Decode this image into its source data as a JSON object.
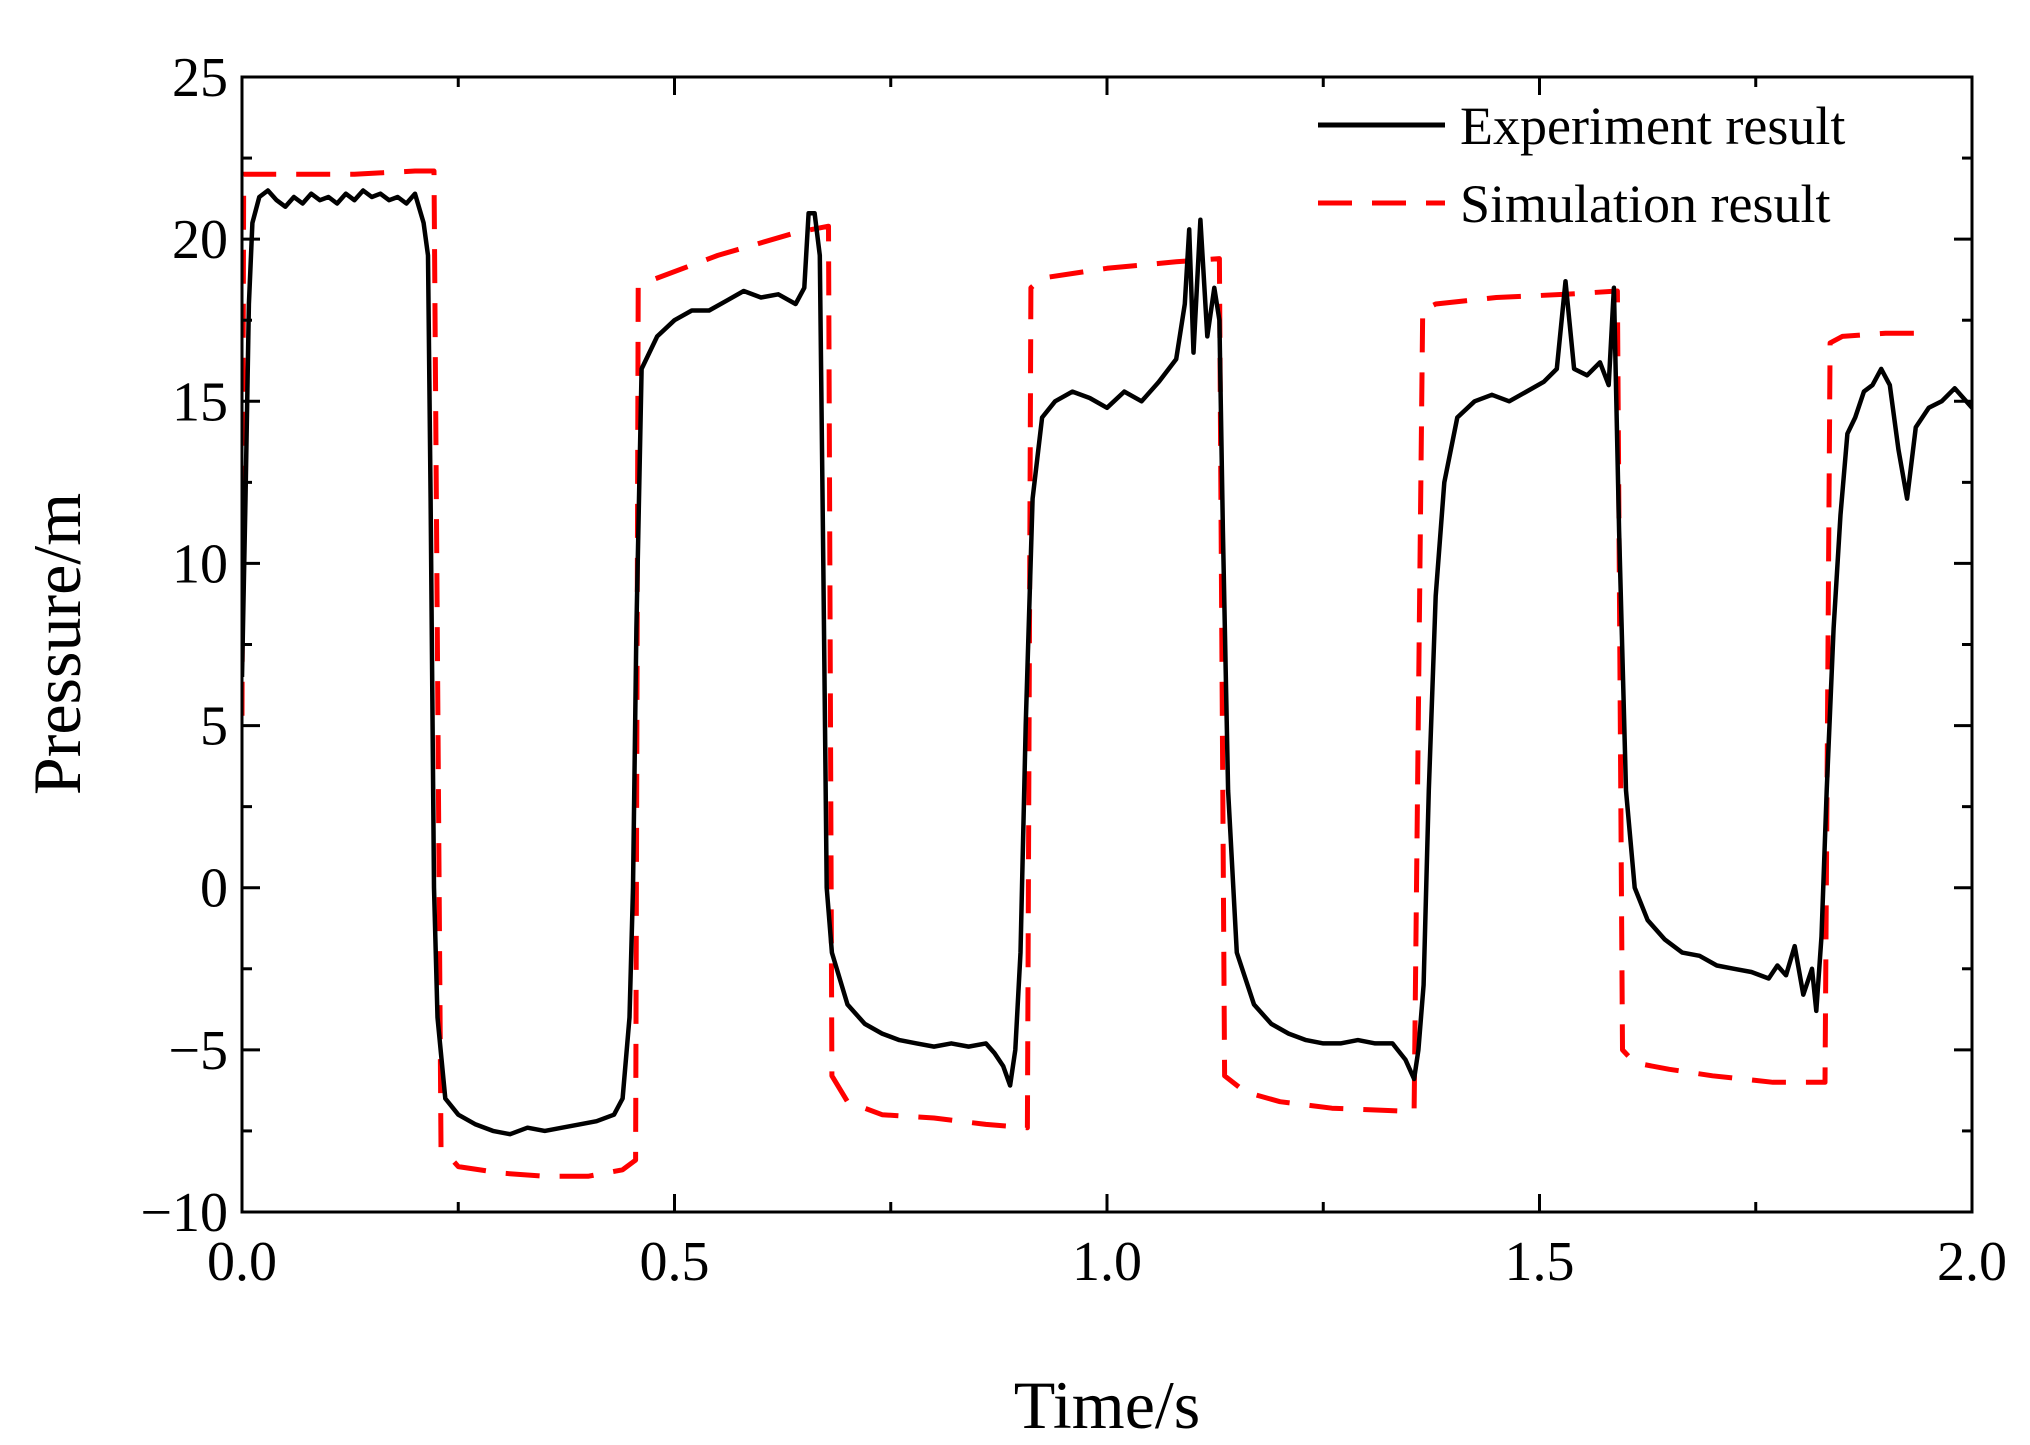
{
  "chart_data": {
    "type": "line",
    "title": "",
    "xlabel": "Time/s",
    "ylabel": "Pressure/m",
    "xlim": [
      0,
      2.0
    ],
    "ylim": [
      -10,
      25
    ],
    "x_ticks": [
      0.0,
      0.5,
      1.0,
      1.5,
      2.0
    ],
    "x_tick_labels": [
      "0.0",
      "0.5",
      "1.0",
      "1.5",
      "2.0"
    ],
    "y_ticks": [
      -10,
      -5,
      0,
      5,
      10,
      15,
      20,
      25
    ],
    "y_tick_labels": [
      "−10",
      "−5",
      "0",
      "5",
      "10",
      "15",
      "20",
      "25"
    ],
    "grid": false,
    "legend_position": "top-right",
    "series": [
      {
        "name": "Experiment result",
        "color": "#000000",
        "style": "solid",
        "points": [
          [
            0.0,
            6.5
          ],
          [
            0.004,
            12
          ],
          [
            0.008,
            18
          ],
          [
            0.012,
            20.5
          ],
          [
            0.02,
            21.3
          ],
          [
            0.03,
            21.5
          ],
          [
            0.04,
            21.2
          ],
          [
            0.05,
            21.0
          ],
          [
            0.06,
            21.3
          ],
          [
            0.07,
            21.1
          ],
          [
            0.08,
            21.4
          ],
          [
            0.09,
            21.2
          ],
          [
            0.1,
            21.3
          ],
          [
            0.11,
            21.1
          ],
          [
            0.12,
            21.4
          ],
          [
            0.13,
            21.2
          ],
          [
            0.14,
            21.5
          ],
          [
            0.15,
            21.3
          ],
          [
            0.16,
            21.4
          ],
          [
            0.17,
            21.2
          ],
          [
            0.18,
            21.3
          ],
          [
            0.19,
            21.1
          ],
          [
            0.2,
            21.4
          ],
          [
            0.21,
            20.5
          ],
          [
            0.215,
            19.5
          ],
          [
            0.218,
            12
          ],
          [
            0.222,
            0
          ],
          [
            0.226,
            -4
          ],
          [
            0.235,
            -6.5
          ],
          [
            0.25,
            -7.0
          ],
          [
            0.27,
            -7.3
          ],
          [
            0.29,
            -7.5
          ],
          [
            0.31,
            -7.6
          ],
          [
            0.33,
            -7.4
          ],
          [
            0.35,
            -7.5
          ],
          [
            0.37,
            -7.4
          ],
          [
            0.39,
            -7.3
          ],
          [
            0.41,
            -7.2
          ],
          [
            0.43,
            -7.0
          ],
          [
            0.44,
            -6.5
          ],
          [
            0.448,
            -4
          ],
          [
            0.452,
            0
          ],
          [
            0.456,
            8
          ],
          [
            0.462,
            16
          ],
          [
            0.48,
            17.0
          ],
          [
            0.5,
            17.5
          ],
          [
            0.52,
            17.8
          ],
          [
            0.54,
            17.8
          ],
          [
            0.56,
            18.1
          ],
          [
            0.58,
            18.4
          ],
          [
            0.6,
            18.2
          ],
          [
            0.62,
            18.3
          ],
          [
            0.64,
            18.0
          ],
          [
            0.65,
            18.5
          ],
          [
            0.655,
            20.8
          ],
          [
            0.662,
            20.8
          ],
          [
            0.668,
            19.5
          ],
          [
            0.672,
            10
          ],
          [
            0.676,
            0
          ],
          [
            0.682,
            -2
          ],
          [
            0.7,
            -3.6
          ],
          [
            0.72,
            -4.2
          ],
          [
            0.74,
            -4.5
          ],
          [
            0.76,
            -4.7
          ],
          [
            0.78,
            -4.8
          ],
          [
            0.8,
            -4.9
          ],
          [
            0.82,
            -4.8
          ],
          [
            0.84,
            -4.9
          ],
          [
            0.86,
            -4.8
          ],
          [
            0.87,
            -5.1
          ],
          [
            0.88,
            -5.5
          ],
          [
            0.888,
            -6.1
          ],
          [
            0.894,
            -5.0
          ],
          [
            0.9,
            -2
          ],
          [
            0.906,
            5
          ],
          [
            0.914,
            12
          ],
          [
            0.925,
            14.5
          ],
          [
            0.94,
            15.0
          ],
          [
            0.96,
            15.3
          ],
          [
            0.98,
            15.1
          ],
          [
            1.0,
            14.8
          ],
          [
            1.02,
            15.3
          ],
          [
            1.04,
            15.0
          ],
          [
            1.06,
            15.6
          ],
          [
            1.08,
            16.3
          ],
          [
            1.09,
            18.0
          ],
          [
            1.095,
            20.3
          ],
          [
            1.1,
            16.5
          ],
          [
            1.108,
            20.6
          ],
          [
            1.116,
            17.0
          ],
          [
            1.124,
            18.5
          ],
          [
            1.13,
            17.5
          ],
          [
            1.134,
            11
          ],
          [
            1.14,
            3
          ],
          [
            1.15,
            -2.0
          ],
          [
            1.17,
            -3.6
          ],
          [
            1.19,
            -4.2
          ],
          [
            1.21,
            -4.5
          ],
          [
            1.23,
            -4.7
          ],
          [
            1.25,
            -4.8
          ],
          [
            1.27,
            -4.8
          ],
          [
            1.29,
            -4.7
          ],
          [
            1.31,
            -4.8
          ],
          [
            1.33,
            -4.8
          ],
          [
            1.345,
            -5.3
          ],
          [
            1.355,
            -5.9
          ],
          [
            1.36,
            -5.0
          ],
          [
            1.366,
            -3
          ],
          [
            1.372,
            3
          ],
          [
            1.38,
            9
          ],
          [
            1.39,
            12.5
          ],
          [
            1.405,
            14.5
          ],
          [
            1.425,
            15.0
          ],
          [
            1.445,
            15.2
          ],
          [
            1.465,
            15.0
          ],
          [
            1.485,
            15.3
          ],
          [
            1.505,
            15.6
          ],
          [
            1.52,
            16.0
          ],
          [
            1.53,
            18.7
          ],
          [
            1.54,
            16.0
          ],
          [
            1.555,
            15.8
          ],
          [
            1.57,
            16.2
          ],
          [
            1.58,
            15.5
          ],
          [
            1.586,
            18.5
          ],
          [
            1.592,
            11
          ],
          [
            1.6,
            3
          ],
          [
            1.61,
            0
          ],
          [
            1.625,
            -1.0
          ],
          [
            1.645,
            -1.6
          ],
          [
            1.665,
            -2.0
          ],
          [
            1.685,
            -2.1
          ],
          [
            1.705,
            -2.4
          ],
          [
            1.725,
            -2.5
          ],
          [
            1.745,
            -2.6
          ],
          [
            1.765,
            -2.8
          ],
          [
            1.775,
            -2.4
          ],
          [
            1.785,
            -2.7
          ],
          [
            1.795,
            -1.8
          ],
          [
            1.805,
            -3.3
          ],
          [
            1.815,
            -2.5
          ],
          [
            1.82,
            -3.8
          ],
          [
            1.826,
            -1.5
          ],
          [
            1.832,
            3
          ],
          [
            1.84,
            8
          ],
          [
            1.848,
            11.5
          ],
          [
            1.856,
            14.0
          ],
          [
            1.865,
            14.5
          ],
          [
            1.875,
            15.3
          ],
          [
            1.885,
            15.5
          ],
          [
            1.895,
            16.0
          ],
          [
            1.905,
            15.5
          ],
          [
            1.915,
            13.5
          ],
          [
            1.925,
            12.0
          ],
          [
            1.935,
            14.2
          ],
          [
            1.95,
            14.8
          ],
          [
            1.965,
            15.0
          ],
          [
            1.98,
            15.4
          ],
          [
            2.0,
            14.8
          ]
        ]
      },
      {
        "name": "Simulation result",
        "color": "#ff0000",
        "style": "dashed",
        "points": [
          [
            0.0,
            5.3
          ],
          [
            0.002,
            22.0
          ],
          [
            0.01,
            22.0
          ],
          [
            0.06,
            22.0
          ],
          [
            0.13,
            22.0
          ],
          [
            0.2,
            22.1
          ],
          [
            0.222,
            22.1
          ],
          [
            0.23,
            -8.0
          ],
          [
            0.25,
            -8.6
          ],
          [
            0.3,
            -8.8
          ],
          [
            0.35,
            -8.9
          ],
          [
            0.4,
            -8.9
          ],
          [
            0.44,
            -8.7
          ],
          [
            0.455,
            -8.4
          ],
          [
            0.458,
            18.5
          ],
          [
            0.47,
            18.7
          ],
          [
            0.55,
            19.5
          ],
          [
            0.64,
            20.2
          ],
          [
            0.678,
            20.4
          ],
          [
            0.682,
            -5.8
          ],
          [
            0.7,
            -6.6
          ],
          [
            0.74,
            -7.0
          ],
          [
            0.8,
            -7.1
          ],
          [
            0.86,
            -7.3
          ],
          [
            0.908,
            -7.4
          ],
          [
            0.912,
            18.5
          ],
          [
            0.925,
            18.8
          ],
          [
            1.0,
            19.1
          ],
          [
            1.08,
            19.3
          ],
          [
            1.13,
            19.4
          ],
          [
            1.136,
            -5.8
          ],
          [
            1.16,
            -6.3
          ],
          [
            1.2,
            -6.6
          ],
          [
            1.26,
            -6.8
          ],
          [
            1.355,
            -6.9
          ],
          [
            1.365,
            17.8
          ],
          [
            1.38,
            18.0
          ],
          [
            1.45,
            18.2
          ],
          [
            1.53,
            18.3
          ],
          [
            1.59,
            18.4
          ],
          [
            1.596,
            -5.0
          ],
          [
            1.61,
            -5.4
          ],
          [
            1.65,
            -5.6
          ],
          [
            1.7,
            -5.8
          ],
          [
            1.77,
            -6.0
          ],
          [
            1.83,
            -6.0
          ],
          [
            1.836,
            16.8
          ],
          [
            1.85,
            17.0
          ],
          [
            1.9,
            17.1
          ],
          [
            1.95,
            17.1
          ]
        ]
      }
    ]
  }
}
